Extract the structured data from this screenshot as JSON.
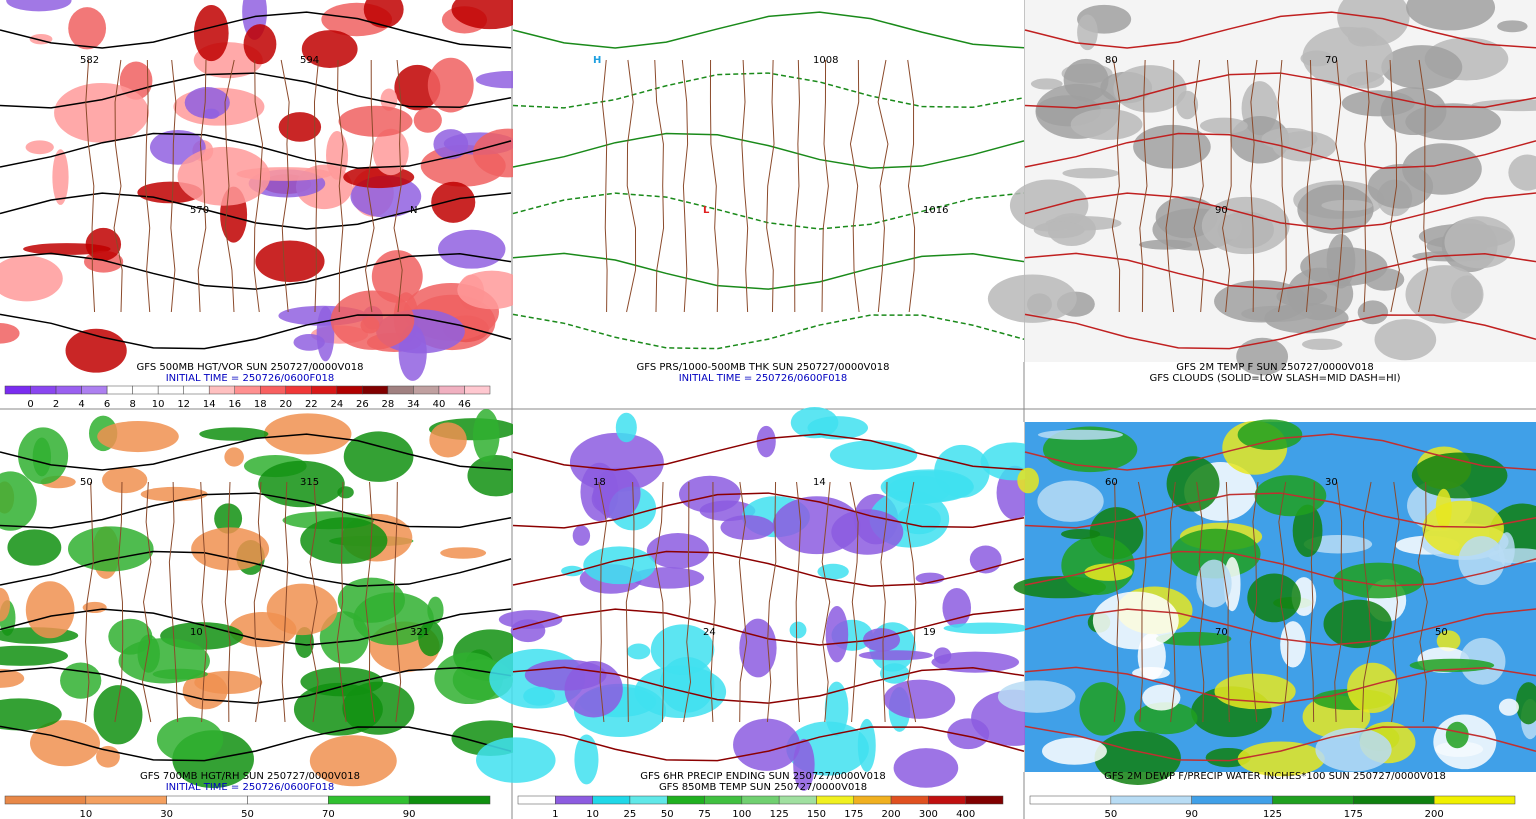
{
  "panels": [
    {
      "captions": [
        {
          "text": "GFS 500MB HGT/VOR SUN 250727/0000V018",
          "color": "#000000"
        },
        {
          "text": "INITIAL TIME = 250726/0600F018",
          "color": "#0000c0"
        }
      ],
      "colorbar": {
        "labels": [
          "0",
          "2",
          "4",
          "6",
          "8",
          "10",
          "12",
          "14",
          "16",
          "18",
          "20",
          "22",
          "24",
          "26",
          "28",
          "34",
          "40",
          "46"
        ],
        "colors": [
          "#7a2cf0",
          "#8a46f0",
          "#9a60f0",
          "#ad80f0",
          "#ffffff",
          "#ffffff",
          "#ffffff",
          "#ffffff",
          "#ffc0c0",
          "#ff9090",
          "#f86060",
          "#f03838",
          "#d81818",
          "#b00000",
          "#800000",
          "#a08080",
          "#c0a0a0",
          "#f0b0c0",
          "#ffc8d0"
        ]
      },
      "map_labels": [
        "582",
        "570",
        "594",
        "N"
      ],
      "bg": "#ffffff"
    },
    {
      "captions": [
        {
          "text": "GFS PRS/1000-500MB THK SUN 250727/0000V018",
          "color": "#000000"
        },
        {
          "text": "INITIAL TIME = 250726/0600F018",
          "color": "#0000c0"
        }
      ],
      "map_labels": [
        "H",
        "L",
        "1008",
        "1016"
      ],
      "bg": "#ffffff"
    },
    {
      "captions": [
        {
          "text": "GFS 2M TEMP F SUN 250727/0000V018",
          "color": "#000000"
        },
        {
          "text": "GFS CLOUDS (SOLID=LOW SLASH=MID DASH=HI)",
          "color": "#000000"
        }
      ],
      "map_labels": [
        "80",
        "90",
        "70"
      ],
      "bg": "#f4f4f4"
    },
    {
      "captions": [
        {
          "text": "GFS 700MB HGT/RH SUN 250727/0000V018",
          "color": "#000000"
        },
        {
          "text": "INITIAL TIME = 250726/0600F018",
          "color": "#0000c0"
        }
      ],
      "colorbar": {
        "labels": [
          "10",
          "30",
          "50",
          "70",
          "90"
        ],
        "colors": [
          "#e88848",
          "#f4a060",
          "#ffffff",
          "#ffffff",
          "#30c030",
          "#109010"
        ]
      },
      "map_labels": [
        "50",
        "10",
        "315",
        "321"
      ],
      "bg": "#ffffff"
    },
    {
      "captions": [
        {
          "text": "GFS 6HR PRECIP ENDING SUN 250727/0000V018",
          "color": "#000000"
        },
        {
          "text": "GFS 850MB TEMP SUN 250727/0000V018",
          "color": "#000000"
        }
      ],
      "colorbar": {
        "labels": [
          "1",
          "10",
          "25",
          "50",
          "75",
          "100",
          "125",
          "150",
          "175",
          "200",
          "300",
          "400"
        ],
        "colors": [
          "#ffffff",
          "#8c5ce0",
          "#20d8e8",
          "#60e8e8",
          "#20b020",
          "#40c040",
          "#70d070",
          "#a0e0a0",
          "#f0f020",
          "#f0b020",
          "#e05020",
          "#c01010",
          "#800000"
        ]
      },
      "map_labels": [
        "18",
        "24",
        "14",
        "19"
      ],
      "bg": "#ffffff"
    },
    {
      "captions": [
        {
          "text": "GFS 2M DEWP F/PRECIP WATER INCHES*100 SUN 250727/0000V018",
          "color": "#000000"
        }
      ],
      "colorbar": {
        "labels": [
          "50",
          "90",
          "125",
          "175",
          "200"
        ],
        "colors": [
          "#ffffff",
          "#b8dcf4",
          "#40a0e8",
          "#20a020",
          "#108010",
          "#f0f000"
        ]
      },
      "map_labels": [
        "60",
        "70",
        "30",
        "50"
      ],
      "bg": "#40a0e8"
    }
  ]
}
